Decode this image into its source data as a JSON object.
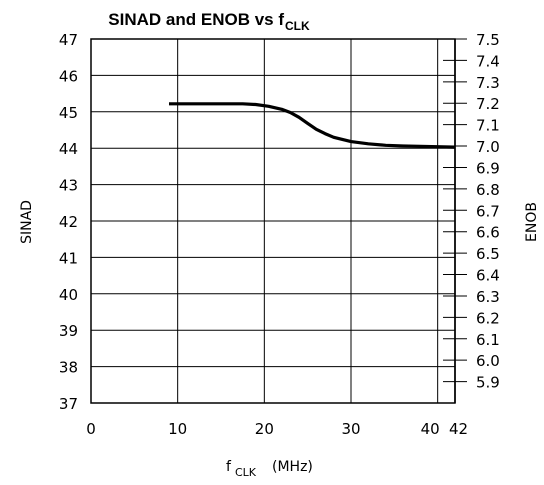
{
  "chart_data": {
    "type": "line",
    "title": "SINAD and ENOB vs f",
    "title_subscript": "CLK",
    "xlabel": "f",
    "xlabel_subscript": "CLK",
    "xlabel_unit": "(MHz)",
    "ylabel": "SINAD",
    "y2label": "ENOB",
    "xlim": [
      0,
      42
    ],
    "ylim": [
      37,
      47
    ],
    "y2lim": [
      5.8,
      7.5
    ],
    "x_ticks": [
      "0",
      "10",
      "20",
      "30",
      "40",
      "42"
    ],
    "y_ticks": [
      "37",
      "38",
      "39",
      "40",
      "41",
      "42",
      "43",
      "44",
      "45",
      "46",
      "47"
    ],
    "y2_ticks": [
      "5.9",
      "6.0",
      "6.1",
      "6.2",
      "6.3",
      "6.4",
      "6.5",
      "6.6",
      "6.7",
      "6.8",
      "6.9",
      "7.0",
      "7.1",
      "7.2",
      "7.3",
      "7.4",
      "7.5"
    ],
    "grid": true,
    "series": [
      {
        "x": [
          9,
          12,
          15,
          17.5,
          19,
          20.5,
          22,
          23,
          24,
          25,
          26,
          27,
          28,
          30,
          32,
          34,
          36,
          38,
          40,
          42
        ],
        "y": [
          45.22,
          45.22,
          45.22,
          45.22,
          45.2,
          45.15,
          45.07,
          44.98,
          44.85,
          44.68,
          44.52,
          44.4,
          44.3,
          44.18,
          44.12,
          44.08,
          44.06,
          44.05,
          44.04,
          44.03
        ]
      }
    ]
  }
}
